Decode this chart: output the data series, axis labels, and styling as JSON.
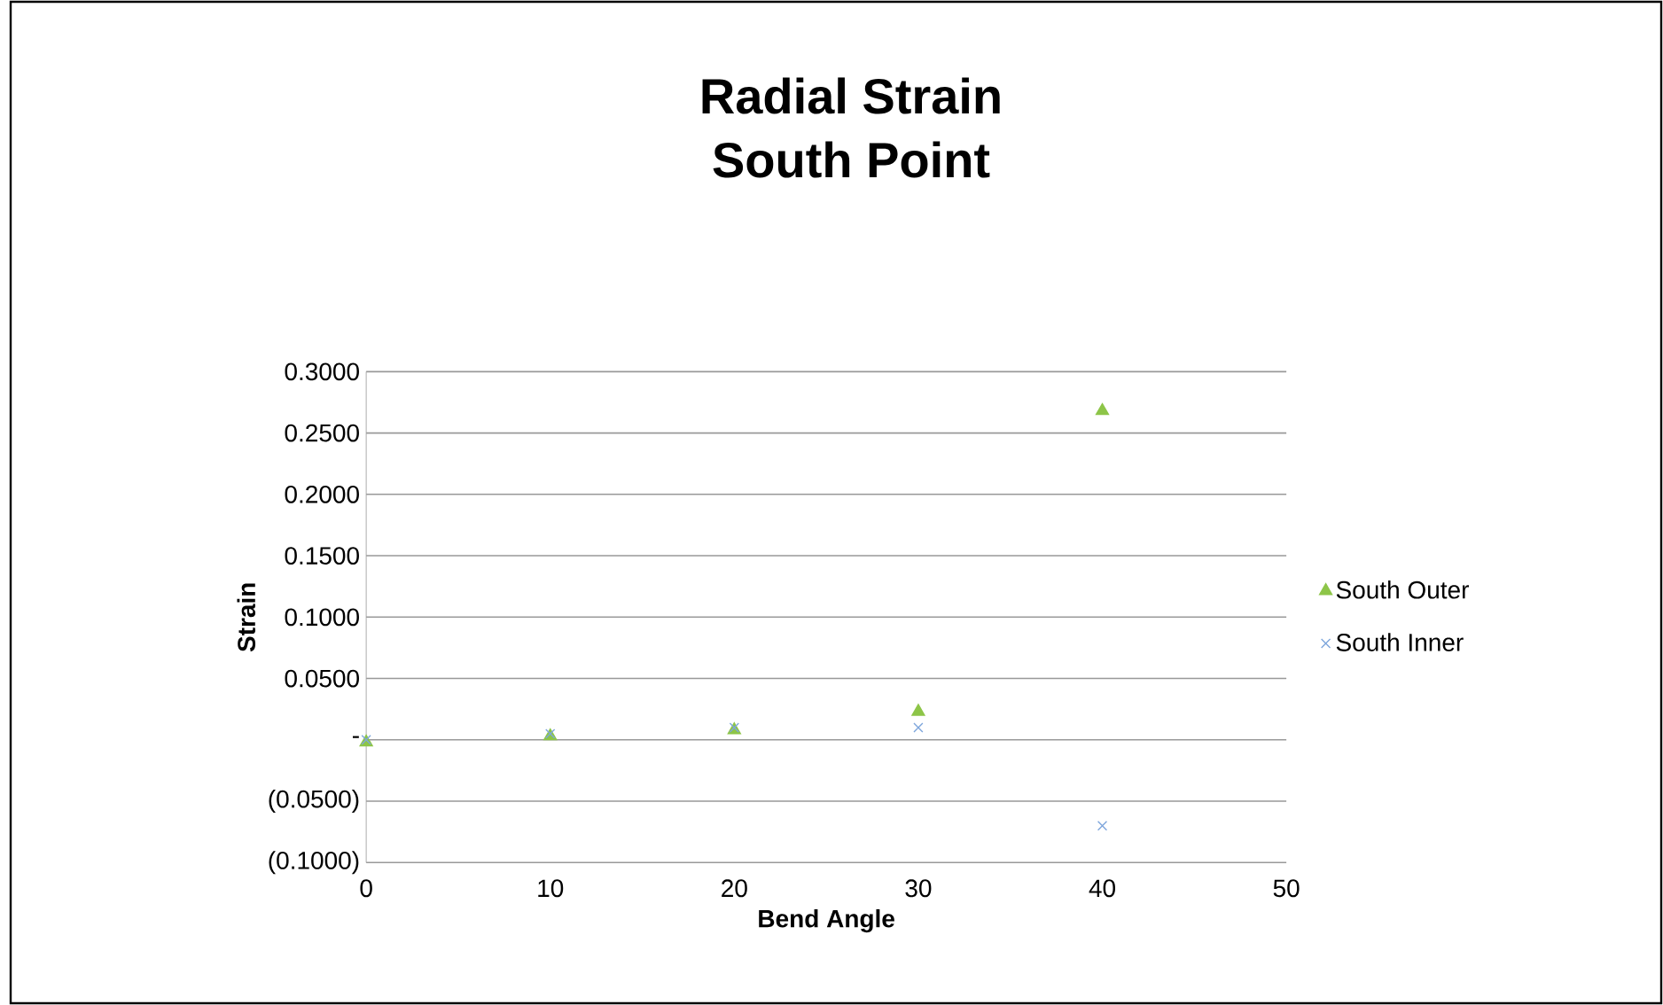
{
  "chart_data": {
    "type": "scatter",
    "title": "Radial Strain\nSouth Point",
    "xlabel": "Bend Angle",
    "ylabel": "Strain",
    "x": [
      0,
      10,
      20,
      30,
      40
    ],
    "series": [
      {
        "name": "South Outer",
        "color": "#8dc548",
        "marker": "triangle",
        "values": [
          -0.002,
          0.003,
          0.008,
          0.023,
          0.268
        ]
      },
      {
        "name": "South Inner",
        "color": "#7ea6dc",
        "marker": "cross",
        "values": [
          0.0,
          0.005,
          0.01,
          0.01,
          -0.07
        ]
      }
    ],
    "xlim": [
      0,
      50
    ],
    "xticks": [
      0,
      10,
      20,
      30,
      40,
      50
    ],
    "ylim": [
      -0.1,
      0.3
    ],
    "yticks": [
      {
        "value": -0.1,
        "label": "(0.1000)"
      },
      {
        "value": -0.05,
        "label": "(0.0500)"
      },
      {
        "value": 0,
        "label": "-"
      },
      {
        "value": 0.05,
        "label": "0.0500"
      },
      {
        "value": 0.1,
        "label": "0.1000"
      },
      {
        "value": 0.15,
        "label": "0.1500"
      },
      {
        "value": 0.2,
        "label": "0.2000"
      },
      {
        "value": 0.25,
        "label": "0.2500"
      },
      {
        "value": 0.3,
        "label": "0.3000"
      }
    ],
    "grid": "y",
    "legend": "right"
  }
}
